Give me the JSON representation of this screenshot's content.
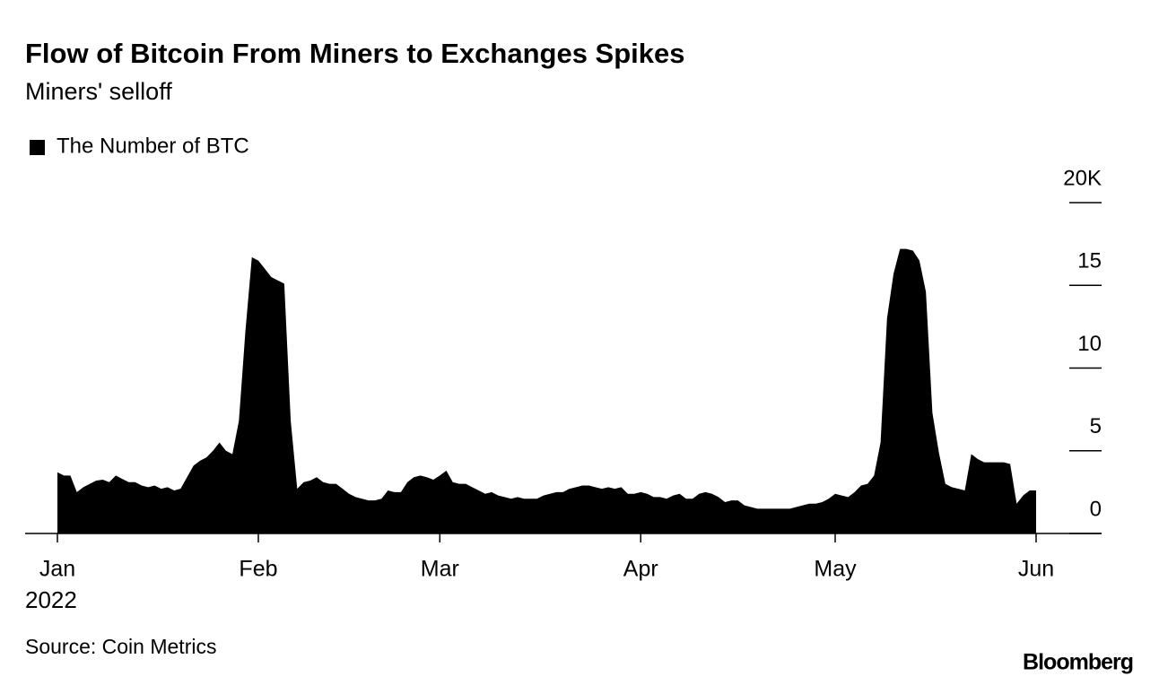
{
  "chart_data": {
    "type": "area",
    "title": "Flow of Bitcoin From Miners to Exchanges Spikes",
    "subtitle": "Miners' selloff",
    "source": "Source: Coin Metrics",
    "brand": "Bloomberg",
    "year": "2022",
    "legend": "top-left",
    "categories": [
      "Jan",
      null,
      null,
      null,
      null,
      null,
      null,
      null,
      null,
      null,
      null,
      null,
      null,
      null,
      null,
      null,
      null,
      null,
      null,
      null,
      null,
      null,
      null,
      null,
      null,
      null,
      null,
      null,
      null,
      null,
      null,
      "Feb",
      null,
      null,
      null,
      null,
      null,
      null,
      null,
      null,
      null,
      null,
      null,
      null,
      null,
      null,
      null,
      null,
      null,
      null,
      null,
      null,
      null,
      null,
      null,
      null,
      null,
      null,
      null,
      "Mar",
      null,
      null,
      null,
      null,
      null,
      null,
      null,
      null,
      null,
      null,
      null,
      null,
      null,
      null,
      null,
      null,
      null,
      null,
      null,
      null,
      null,
      null,
      null,
      null,
      null,
      null,
      null,
      null,
      null,
      null,
      "Apr",
      null,
      null,
      null,
      null,
      null,
      null,
      null,
      null,
      null,
      null,
      null,
      null,
      null,
      null,
      null,
      null,
      null,
      null,
      null,
      null,
      null,
      null,
      null,
      null,
      null,
      null,
      null,
      null,
      null,
      "May",
      null,
      null,
      null,
      null,
      null,
      null,
      null,
      null,
      null,
      null,
      null,
      null,
      null,
      null,
      null,
      null,
      null,
      null,
      null,
      null,
      null,
      null,
      null,
      null,
      null,
      null,
      null,
      null,
      null,
      null,
      "Jun"
    ],
    "series": [
      {
        "name": "The Number of BTC",
        "color": "#000000",
        "values": [
          3.7,
          3.5,
          3.5,
          2.5,
          2.8,
          3.0,
          3.2,
          3.25,
          3.1,
          3.5,
          3.3,
          3.1,
          3.1,
          2.9,
          2.8,
          2.9,
          2.7,
          2.8,
          2.6,
          2.7,
          3.4,
          4.1,
          4.4,
          4.6,
          5.0,
          5.5,
          5.0,
          4.8,
          6.8,
          12.2,
          16.7,
          16.5,
          16.0,
          15.5,
          15.3,
          15.1,
          6.8,
          2.7,
          3.1,
          3.2,
          3.4,
          3.1,
          3.0,
          3.0,
          2.7,
          2.4,
          2.2,
          2.1,
          2.0,
          2.0,
          2.1,
          2.6,
          2.5,
          2.5,
          3.1,
          3.4,
          3.5,
          3.4,
          3.25,
          3.5,
          3.8,
          3.1,
          3.0,
          3.0,
          2.8,
          2.6,
          2.4,
          2.5,
          2.3,
          2.2,
          2.1,
          2.2,
          2.1,
          2.1,
          2.1,
          2.3,
          2.4,
          2.5,
          2.5,
          2.7,
          2.8,
          2.9,
          2.9,
          2.8,
          2.7,
          2.8,
          2.7,
          2.8,
          2.4,
          2.4,
          2.5,
          2.4,
          2.2,
          2.2,
          2.1,
          2.3,
          2.4,
          2.1,
          2.1,
          2.4,
          2.5,
          2.4,
          2.2,
          1.9,
          2.0,
          2.0,
          1.7,
          1.6,
          1.5,
          1.5,
          1.5,
          1.5,
          1.5,
          1.5,
          1.6,
          1.7,
          1.8,
          1.8,
          1.9,
          2.1,
          2.4,
          2.3,
          2.2,
          2.5,
          2.9,
          3.0,
          3.5,
          5.5,
          13.0,
          15.7,
          17.2,
          17.2,
          17.1,
          16.5,
          14.6,
          7.3,
          4.9,
          3.0,
          2.8,
          2.7,
          2.6,
          4.8,
          4.5,
          4.3,
          4.3,
          4.3,
          4.3,
          4.2,
          1.8,
          2.3,
          2.6,
          2.6
        ]
      }
    ],
    "ylim": [
      0,
      20
    ],
    "yticks": [
      0,
      5,
      10,
      15,
      {
        "value": 20,
        "label": "20K"
      }
    ]
  }
}
